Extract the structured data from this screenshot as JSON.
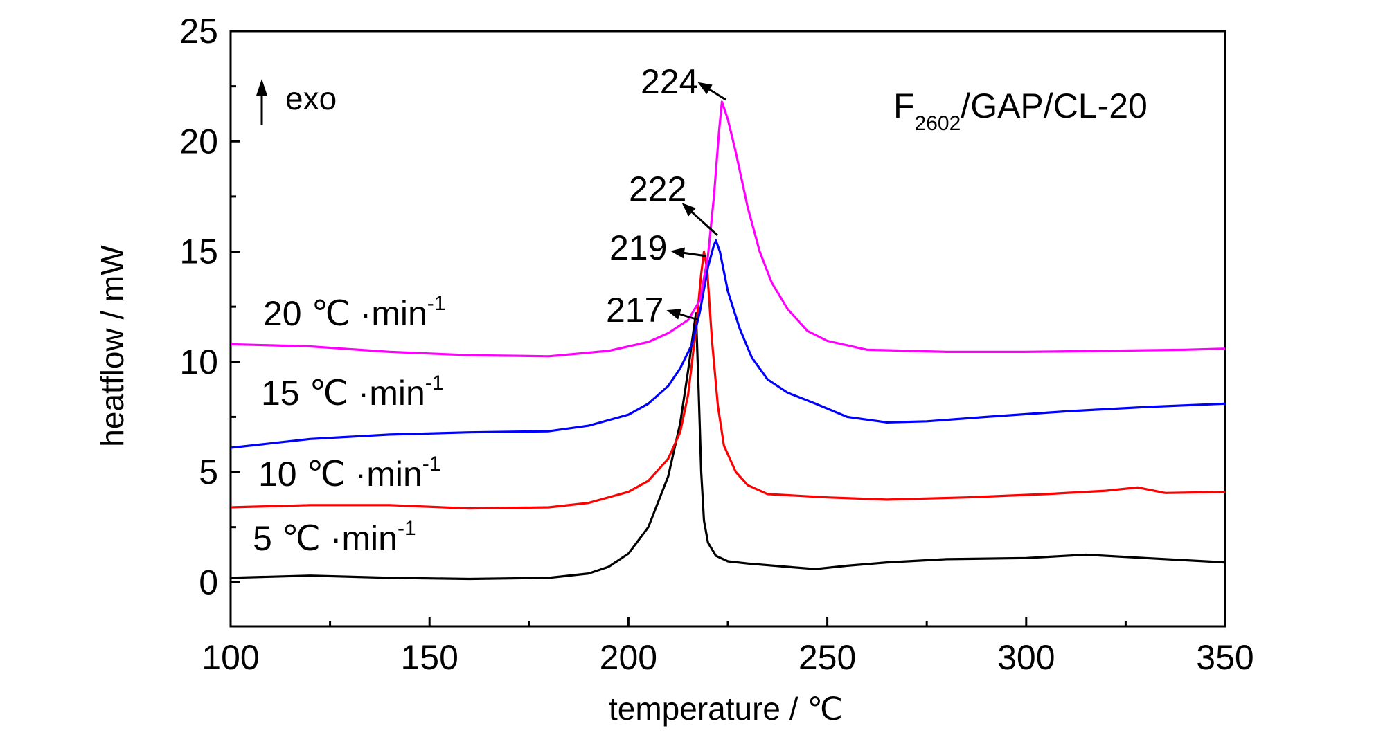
{
  "chart_data": {
    "type": "line",
    "title": "",
    "xlabel": "temperature / ℃",
    "ylabel": "heatflow / mW",
    "xlim": [
      100,
      350
    ],
    "ylim": [
      -2,
      25
    ],
    "xticks": [
      100,
      150,
      200,
      250,
      300,
      350
    ],
    "yticks": [
      0,
      5,
      10,
      15,
      20,
      25
    ],
    "grid": false,
    "legend": "none",
    "annotations": {
      "sample": {
        "main": "F",
        "sub": "2602",
        "rest": "/GAP/CL-20"
      },
      "exo": "exo"
    },
    "series": [
      {
        "rate_value": "5",
        "rate_unit": "℃ ·min",
        "rate_exp": "-1",
        "color": "#000000",
        "peak": {
          "x": 217,
          "y": 12.2,
          "label": "217"
        },
        "points": [
          [
            100,
            0.2
          ],
          [
            120,
            0.3
          ],
          [
            140,
            0.2
          ],
          [
            160,
            0.15
          ],
          [
            180,
            0.2
          ],
          [
            190,
            0.4
          ],
          [
            195,
            0.7
          ],
          [
            200,
            1.3
          ],
          [
            205,
            2.5
          ],
          [
            210,
            4.8
          ],
          [
            213,
            7.2
          ],
          [
            215,
            9.6
          ],
          [
            216.5,
            11.6
          ],
          [
            217,
            12.2
          ],
          [
            217.6,
            9
          ],
          [
            218.3,
            5
          ],
          [
            219,
            2.8
          ],
          [
            220,
            1.8
          ],
          [
            222,
            1.2
          ],
          [
            225,
            0.95
          ],
          [
            230,
            0.85
          ],
          [
            240,
            0.7
          ],
          [
            247,
            0.6
          ],
          [
            255,
            0.75
          ],
          [
            265,
            0.9
          ],
          [
            280,
            1.05
          ],
          [
            300,
            1.1
          ],
          [
            315,
            1.25
          ],
          [
            330,
            1.1
          ],
          [
            345,
            0.95
          ],
          [
            350,
            0.9
          ]
        ]
      },
      {
        "rate_value": "10",
        "rate_unit": "℃ ·min",
        "rate_exp": "-1",
        "color": "#ff0000",
        "peak": {
          "x": 219,
          "y": 15.0,
          "label": "219"
        },
        "points": [
          [
            100,
            3.4
          ],
          [
            120,
            3.5
          ],
          [
            140,
            3.5
          ],
          [
            160,
            3.35
          ],
          [
            180,
            3.4
          ],
          [
            190,
            3.6
          ],
          [
            200,
            4.1
          ],
          [
            205,
            4.6
          ],
          [
            210,
            5.6
          ],
          [
            213,
            6.8
          ],
          [
            215,
            8.5
          ],
          [
            217,
            11.5
          ],
          [
            218.3,
            14
          ],
          [
            219,
            15
          ],
          [
            219.8,
            14.2
          ],
          [
            221,
            11
          ],
          [
            222.5,
            8
          ],
          [
            224,
            6.2
          ],
          [
            227,
            5.0
          ],
          [
            230,
            4.4
          ],
          [
            235,
            4.0
          ],
          [
            250,
            3.85
          ],
          [
            265,
            3.75
          ],
          [
            285,
            3.85
          ],
          [
            305,
            4.0
          ],
          [
            320,
            4.15
          ],
          [
            328,
            4.3
          ],
          [
            335,
            4.05
          ],
          [
            350,
            4.1
          ]
        ]
      },
      {
        "rate_value": "15",
        "rate_unit": "℃ ·min",
        "rate_exp": "-1",
        "color": "#0000ff",
        "peak": {
          "x": 222,
          "y": 15.5,
          "label": "222"
        },
        "points": [
          [
            100,
            6.1
          ],
          [
            120,
            6.5
          ],
          [
            140,
            6.7
          ],
          [
            160,
            6.8
          ],
          [
            180,
            6.85
          ],
          [
            190,
            7.1
          ],
          [
            200,
            7.6
          ],
          [
            205,
            8.1
          ],
          [
            210,
            8.9
          ],
          [
            213,
            9.7
          ],
          [
            216,
            10.8
          ],
          [
            218,
            12.3
          ],
          [
            220,
            14.3
          ],
          [
            221.5,
            15.3
          ],
          [
            222,
            15.5
          ],
          [
            223,
            15.0
          ],
          [
            225,
            13.2
          ],
          [
            228,
            11.5
          ],
          [
            231,
            10.2
          ],
          [
            235,
            9.2
          ],
          [
            240,
            8.6
          ],
          [
            247,
            8.1
          ],
          [
            255,
            7.5
          ],
          [
            265,
            7.25
          ],
          [
            275,
            7.3
          ],
          [
            290,
            7.5
          ],
          [
            310,
            7.75
          ],
          [
            330,
            7.95
          ],
          [
            350,
            8.1
          ]
        ]
      },
      {
        "rate_value": "20",
        "rate_unit": "℃ ·min",
        "rate_exp": "-1",
        "color": "#ff00ff",
        "peak": {
          "x": 224,
          "y": 21.8,
          "label": "224"
        },
        "points": [
          [
            100,
            10.8
          ],
          [
            120,
            10.7
          ],
          [
            140,
            10.45
          ],
          [
            160,
            10.3
          ],
          [
            180,
            10.25
          ],
          [
            195,
            10.5
          ],
          [
            205,
            10.9
          ],
          [
            210,
            11.3
          ],
          [
            215,
            11.9
          ],
          [
            218,
            12.8
          ],
          [
            220,
            14.8
          ],
          [
            221.5,
            17.5
          ],
          [
            222.8,
            20.5
          ],
          [
            223.5,
            21.8
          ],
          [
            225,
            21.0
          ],
          [
            227,
            19.5
          ],
          [
            230,
            17.0
          ],
          [
            233,
            15.0
          ],
          [
            236,
            13.6
          ],
          [
            240,
            12.4
          ],
          [
            245,
            11.4
          ],
          [
            250,
            10.95
          ],
          [
            260,
            10.55
          ],
          [
            280,
            10.45
          ],
          [
            300,
            10.45
          ],
          [
            320,
            10.5
          ],
          [
            340,
            10.55
          ],
          [
            350,
            10.6
          ]
        ]
      }
    ]
  }
}
